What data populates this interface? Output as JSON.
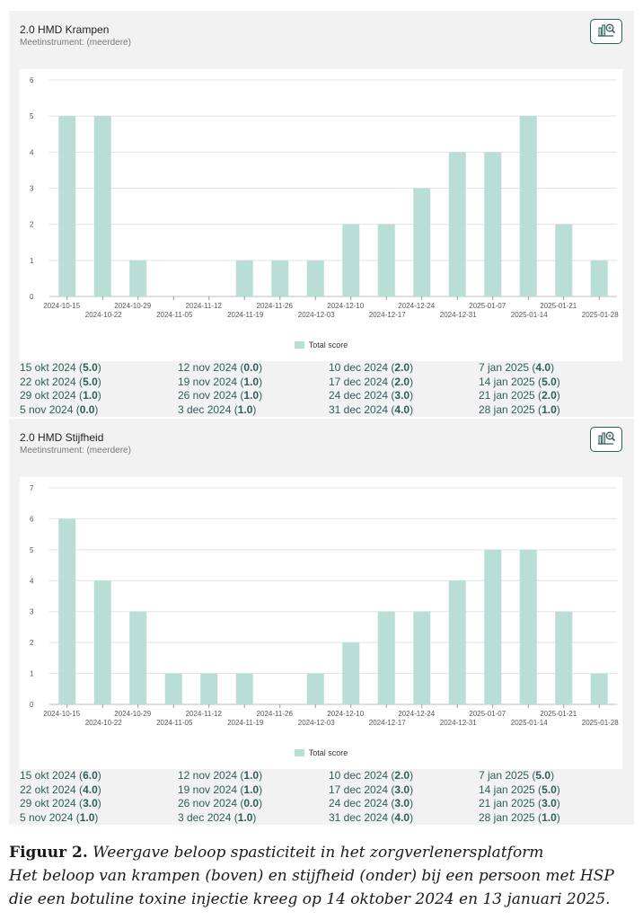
{
  "caption": {
    "label": "Figuur 2.",
    "title": "Weergave beloop spasticiteit in het zorgverlenersplatform",
    "line2": "Het beloop van krampen (boven) en stijfheid (onder) bij een persoon met HSP",
    "line3": "die een botuline toxine injectie kreeg op 14 oktober 2024 en 13 januari 2025."
  },
  "charts": [
    {
      "title": "2.0 HMD Krampen",
      "subtitle": "Meetinstrument: (meerdere)",
      "summary": [
        [
          "15 okt 2024",
          "5.0"
        ],
        [
          "22 okt 2024",
          "5.0"
        ],
        [
          "29 okt 2024",
          "1.0"
        ],
        [
          "5 nov 2024",
          "0.0"
        ],
        [
          "12 nov 2024",
          "0.0"
        ],
        [
          "19 nov 2024",
          "1.0"
        ],
        [
          "26 nov 2024",
          "1.0"
        ],
        [
          "3 dec 2024",
          "1.0"
        ],
        [
          "10 dec 2024",
          "2.0"
        ],
        [
          "17 dec 2024",
          "2.0"
        ],
        [
          "24 dec 2024",
          "3.0"
        ],
        [
          "31 dec 2024",
          "4.0"
        ],
        [
          "7 jan 2025",
          "4.0"
        ],
        [
          "14 jan 2025",
          "5.0"
        ],
        [
          "21 jan 2025",
          "2.0"
        ],
        [
          "28 jan 2025",
          "1.0"
        ]
      ]
    },
    {
      "title": "2.0 HMD Stijfheid",
      "subtitle": "Meetinstrument: (meerdere)",
      "summary": [
        [
          "15 okt 2024",
          "6.0"
        ],
        [
          "22 okt 2024",
          "4.0"
        ],
        [
          "29 okt 2024",
          "3.0"
        ],
        [
          "5 nov 2024",
          "1.0"
        ],
        [
          "12 nov 2024",
          "1.0"
        ],
        [
          "19 nov 2024",
          "1.0"
        ],
        [
          "26 nov 2024",
          "0.0"
        ],
        [
          "3 dec 2024",
          "1.0"
        ],
        [
          "10 dec 2024",
          "2.0"
        ],
        [
          "17 dec 2024",
          "3.0"
        ],
        [
          "24 dec 2024",
          "3.0"
        ],
        [
          "31 dec 2024",
          "4.0"
        ],
        [
          "7 jan 2025",
          "5.0"
        ],
        [
          "14 jan 2025",
          "5.0"
        ],
        [
          "21 jan 2025",
          "3.0"
        ],
        [
          "28 jan 2025",
          "1.0"
        ]
      ]
    }
  ],
  "chart_data": [
    {
      "type": "bar",
      "title": "2.0 HMD Krampen",
      "categories": [
        "2024-10-15",
        "2024-10-22",
        "2024-10-29",
        "2024-11-05",
        "2024-11-12",
        "2024-11-19",
        "2024-11-26",
        "2024-12-03",
        "2024-12-10",
        "2024-12-17",
        "2024-12-24",
        "2024-12-31",
        "2025-01-07",
        "2025-01-14",
        "2025-01-21",
        "2025-01-28"
      ],
      "series": [
        {
          "name": "Total score",
          "values": [
            5,
            5,
            1,
            0,
            0,
            1,
            1,
            1,
            2,
            2,
            3,
            4,
            4,
            5,
            2,
            1
          ]
        }
      ],
      "ylim": [
        0,
        6
      ],
      "yticks": [
        0,
        1,
        2,
        3,
        4,
        5,
        6
      ],
      "grid": true,
      "legend": "bottom",
      "color": "#b8ded6"
    },
    {
      "type": "bar",
      "title": "2.0 HMD Stijfheid",
      "categories": [
        "2024-10-15",
        "2024-10-22",
        "2024-10-29",
        "2024-11-05",
        "2024-11-12",
        "2024-11-19",
        "2024-11-26",
        "2024-12-03",
        "2024-12-10",
        "2024-12-17",
        "2024-12-24",
        "2024-12-31",
        "2025-01-07",
        "2025-01-14",
        "2025-01-21",
        "2025-01-28"
      ],
      "series": [
        {
          "name": "Total score",
          "values": [
            6,
            4,
            3,
            1,
            1,
            1,
            0,
            1,
            2,
            3,
            3,
            4,
            5,
            5,
            3,
            1
          ]
        }
      ],
      "ylim": [
        0,
        7
      ],
      "yticks": [
        0,
        1,
        2,
        3,
        4,
        5,
        6,
        7
      ],
      "grid": true,
      "legend": "bottom",
      "color": "#b8ded6"
    }
  ]
}
